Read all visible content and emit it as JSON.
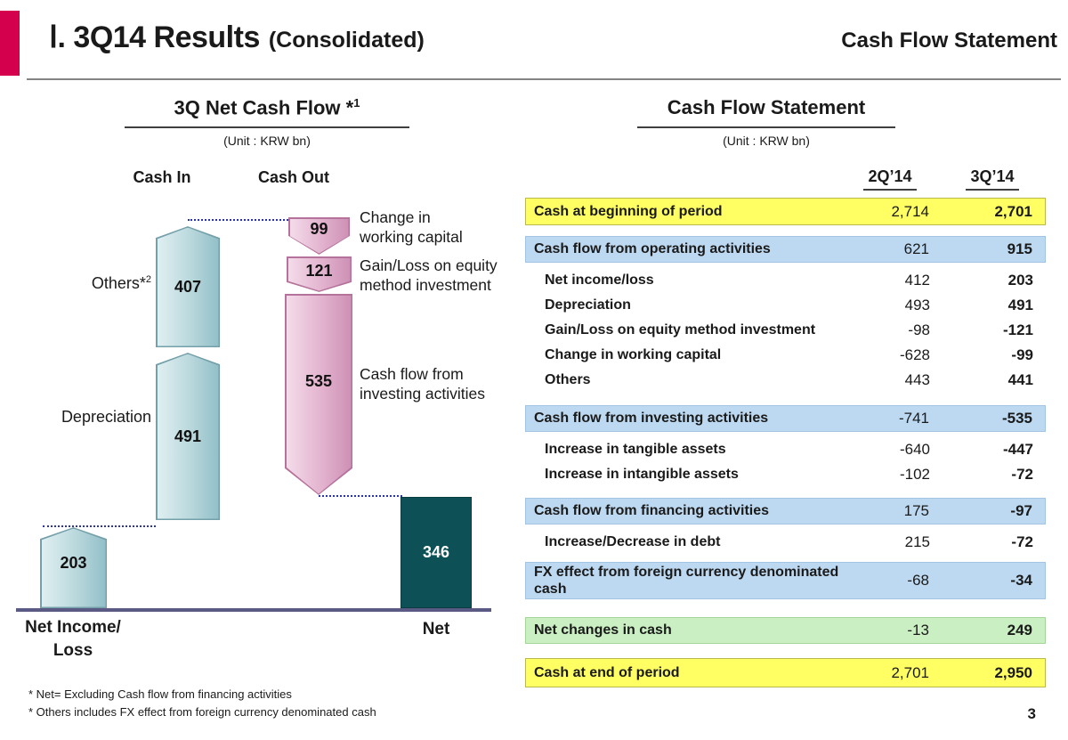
{
  "header": {
    "title_main": "Ⅰ. 3Q14 Results",
    "title_sub": "(Consolidated)",
    "title_right": "Cash Flow Statement"
  },
  "chart": {
    "title_base": "3Q Net Cash Flow *",
    "title_sup": "1",
    "unit": "(Unit : KRW bn)",
    "cash_in_label": "Cash In",
    "cash_out_label": "Cash Out",
    "bars": {
      "net_income_loss": {
        "value": "203",
        "axis_label": "Net Income/\nLoss"
      },
      "depreciation": {
        "value": "491",
        "side_label": "Depreciation"
      },
      "others": {
        "value": "407",
        "side_label_base": "Others*",
        "side_label_sup": "2"
      },
      "working_capital": {
        "value": "99",
        "annotation": "Change in\nworking capital"
      },
      "equity_method": {
        "value": "121",
        "annotation": "Gain/Loss on equity\nmethod investment"
      },
      "investing": {
        "value": "535",
        "annotation": "Cash flow from\ninvesting activities"
      },
      "net": {
        "value": "346",
        "axis_label": "Net"
      }
    },
    "footnotes": [
      "* Net= Excluding Cash flow from financing activities",
      "* Others includes FX effect from foreign currency denominated cash"
    ]
  },
  "chart_data": {
    "type": "bar",
    "title": "3Q Net Cash Flow (Unit: KRW bn)",
    "groups": [
      {
        "name": "Cash In",
        "items": [
          {
            "label": "Net Income/Loss",
            "value": 203
          },
          {
            "label": "Depreciation",
            "value": 491
          },
          {
            "label": "Others",
            "value": 407
          }
        ]
      },
      {
        "name": "Cash Out",
        "items": [
          {
            "label": "Change in working capital",
            "value": 99
          },
          {
            "label": "Gain/Loss on equity method investment",
            "value": 121
          },
          {
            "label": "Cash flow from investing activities",
            "value": 535
          }
        ]
      },
      {
        "name": "Net",
        "items": [
          {
            "label": "Net",
            "value": 346
          }
        ]
      }
    ]
  },
  "table": {
    "title": "Cash Flow Statement",
    "unit": "(Unit : KRW bn)",
    "columns": [
      "2Q’14",
      "3Q’14"
    ],
    "rows": [
      {
        "label": "Cash at beginning of period",
        "v1": "2,714",
        "v2": "2,701"
      },
      {
        "label": "Cash flow from operating activities",
        "v1": "621",
        "v2": "915"
      },
      {
        "label": "Net income/loss",
        "v1": "412",
        "v2": "203"
      },
      {
        "label": "Depreciation",
        "v1": "493",
        "v2": "491"
      },
      {
        "label": "Gain/Loss on equity method investment",
        "v1": "-98",
        "v2": "-121"
      },
      {
        "label": "Change in working capital",
        "v1": "-628",
        "v2": "-99"
      },
      {
        "label": "Others",
        "v1": "443",
        "v2": "441"
      },
      {
        "label": "Cash flow from investing activities",
        "v1": "-741",
        "v2": "-535"
      },
      {
        "label": "Increase in tangible assets",
        "v1": "-640",
        "v2": "-447"
      },
      {
        "label": "Increase in intangible assets",
        "v1": "-102",
        "v2": "-72"
      },
      {
        "label": "Cash flow from financing activities",
        "v1": "175",
        "v2": "-97"
      },
      {
        "label": "Increase/Decrease in debt",
        "v1": "215",
        "v2": "-72"
      },
      {
        "label": "FX effect from foreign currency denominated cash",
        "v1": "-68",
        "v2": "-34"
      },
      {
        "label": "Net changes in cash",
        "v1": "-13",
        "v2": "249"
      },
      {
        "label": "Cash at end of period",
        "v1": "2,701",
        "v2": "2,950"
      }
    ]
  },
  "page_number": "3",
  "colors": {
    "accent_bar": "#d4004e",
    "highlight_yellow": "#ffff63",
    "highlight_blue": "#bdd9f1",
    "highlight_green": "#c9efc2",
    "cash_in_bar": "#92bfc8",
    "cash_out_bar": "#e2b2ce",
    "net_bar": "#0d5156",
    "baseline": "#5a5a84",
    "dotted_line": "#2a35ad"
  }
}
